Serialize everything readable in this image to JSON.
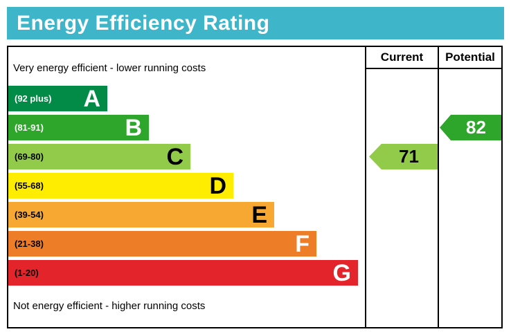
{
  "title": "Energy Efficiency Rating",
  "columns": {
    "current": "Current",
    "potential": "Potential"
  },
  "top_note": "Very energy efficient - lower running costs",
  "bottom_note": "Not energy efficient - higher running costs",
  "bands": [
    {
      "letter": "A",
      "range": "(92 plus)",
      "color": "#028b46"
    },
    {
      "letter": "B",
      "range": "(81-91)",
      "color": "#2ea62b"
    },
    {
      "letter": "C",
      "range": "(69-80)",
      "color": "#92ca49"
    },
    {
      "letter": "D",
      "range": "(55-68)",
      "color": "#ffed00"
    },
    {
      "letter": "E",
      "range": "(39-54)",
      "color": "#f7a832"
    },
    {
      "letter": "F",
      "range": "(21-38)",
      "color": "#ee7d28"
    },
    {
      "letter": "G",
      "range": "(1-20)",
      "color": "#e3242b"
    }
  ],
  "ratings": {
    "current": {
      "value": "71",
      "band": "C",
      "color": "#92ca49"
    },
    "potential": {
      "value": "82",
      "band": "B",
      "color": "#2ea62b"
    }
  },
  "theme": {
    "title_bg": "#3eb5c9",
    "title_text": "#ffffff",
    "border": "#000000"
  },
  "chart_data": {
    "type": "bar",
    "title": "Energy Efficiency Rating",
    "top_label": "Very energy efficient - lower running costs",
    "bottom_label": "Not energy efficient - higher running costs",
    "bands": [
      {
        "letter": "A",
        "range_label": "(92 plus)",
        "min": 92,
        "max": 100
      },
      {
        "letter": "B",
        "range_label": "(81-91)",
        "min": 81,
        "max": 91
      },
      {
        "letter": "C",
        "range_label": "(69-80)",
        "min": 69,
        "max": 80
      },
      {
        "letter": "D",
        "range_label": "(55-68)",
        "min": 55,
        "max": 68
      },
      {
        "letter": "E",
        "range_label": "(39-54)",
        "min": 39,
        "max": 54
      },
      {
        "letter": "F",
        "range_label": "(21-38)",
        "min": 21,
        "max": 38
      },
      {
        "letter": "G",
        "range_label": "(1-20)",
        "min": 1,
        "max": 20
      }
    ],
    "markers": [
      {
        "name": "Current",
        "value": 71,
        "band": "C"
      },
      {
        "name": "Potential",
        "value": 82,
        "band": "B"
      }
    ],
    "legend_position": "none",
    "grid": false
  }
}
